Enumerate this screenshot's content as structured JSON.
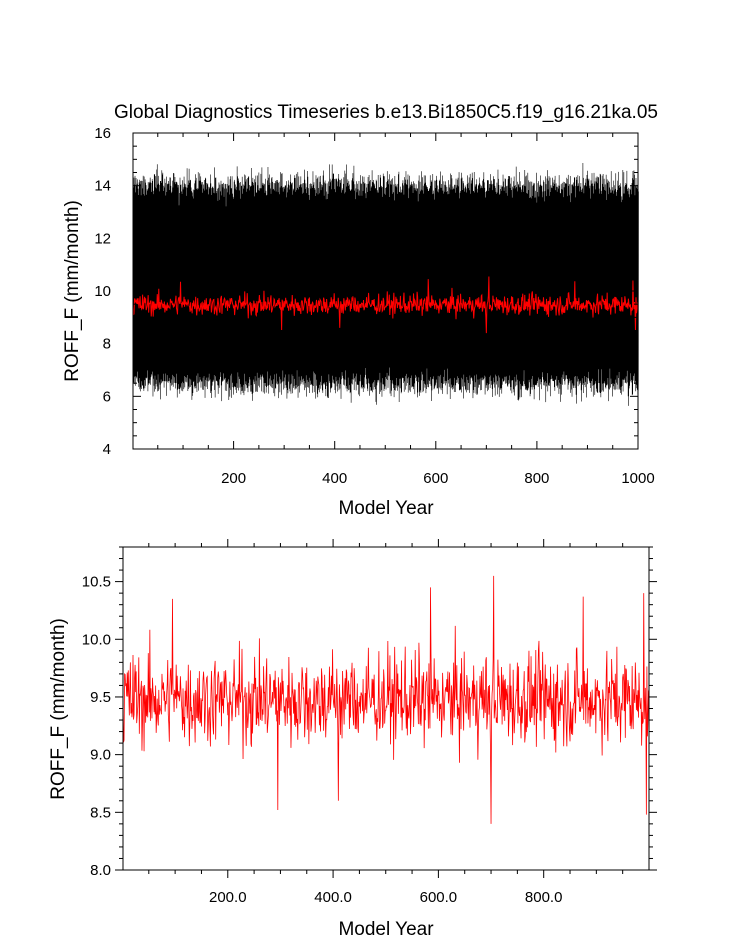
{
  "colors": {
    "raw": "#000000",
    "annual": "#ff0000",
    "frame": "#000000"
  },
  "chart_data": [
    {
      "type": "line",
      "title": "Global Diagnostics Timeseries b.e13.Bi1850C5.f19_g16.21ka.05",
      "xlabel": "Model Year",
      "ylabel": "ROFF_F (mm/month)",
      "xlim": [
        1,
        1000
      ],
      "ylim": [
        4,
        16
      ],
      "xticks": [
        200,
        400,
        600,
        800,
        1000
      ],
      "xtick_labels": [
        "200",
        "400",
        "600",
        "800",
        "1000"
      ],
      "yticks": [
        4,
        6,
        8,
        10,
        12,
        14,
        16
      ],
      "ytick_labels": [
        "4",
        "6",
        "8",
        "10",
        "12",
        "14",
        "16"
      ],
      "series": [
        {
          "kind": "monthly",
          "color": "#000000",
          "description_of_envelope": {
            "seasonal_low_typical": 6.5,
            "seasonal_high_typical": 14.0,
            "observed_min": 5.6,
            "observed_max": 15.4
          }
        },
        {
          "kind": "annual-mean",
          "color": "#ff0000",
          "mean": 9.5,
          "range": [
            8.5,
            10.3
          ]
        }
      ]
    },
    {
      "type": "line",
      "title": "",
      "xlabel": "Model Year",
      "ylabel": "ROFF_F (mm/month)",
      "xlim": [
        1,
        1000
      ],
      "ylim": [
        8.0,
        10.8
      ],
      "xticks": [
        200,
        400,
        600,
        800
      ],
      "xtick_labels": [
        "200.0",
        "400.0",
        "600.0",
        "800.0"
      ],
      "yticks": [
        8.0,
        8.5,
        9.0,
        9.5,
        10.0,
        10.5
      ],
      "ytick_labels": [
        "8.0",
        "8.5",
        "9.0",
        "9.5",
        "10.0",
        "10.5"
      ],
      "series": [
        {
          "kind": "annual-mean",
          "color": "#ff0000",
          "mean": 9.48,
          "observed_min": 8.4,
          "observed_max": 10.55,
          "notable_points": [
            {
              "x": 95,
              "y": 10.35
            },
            {
              "x": 295,
              "y": 8.52
            },
            {
              "x": 410,
              "y": 8.6
            },
            {
              "x": 585,
              "y": 10.45
            },
            {
              "x": 700,
              "y": 8.4
            },
            {
              "x": 705,
              "y": 10.55
            },
            {
              "x": 875,
              "y": 10.37
            },
            {
              "x": 990,
              "y": 10.4
            },
            {
              "x": 995,
              "y": 8.48
            }
          ]
        }
      ]
    }
  ]
}
